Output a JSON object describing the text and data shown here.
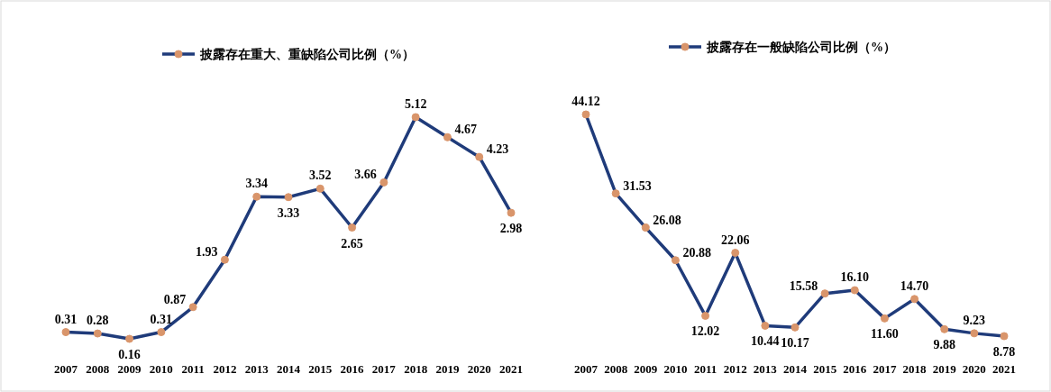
{
  "chart_data": [
    {
      "type": "line",
      "categories": [
        "2007",
        "2008",
        "2009",
        "2010",
        "2011",
        "2012",
        "2013",
        "2014",
        "2015",
        "2016",
        "2017",
        "2018",
        "2019",
        "2020",
        "2021"
      ],
      "legend": "top",
      "marker": "circle",
      "series": [
        {
          "name": "披露存在重大、重缺陷公司比例（%）",
          "color": "#1f3b7a",
          "values": [
            0.31,
            0.28,
            0.16,
            0.31,
            0.87,
            1.93,
            3.34,
            3.33,
            3.52,
            2.65,
            3.66,
            5.12,
            4.67,
            4.23,
            2.98
          ],
          "value_labels": [
            "0.31",
            "0.28",
            "0.16",
            "0.31",
            "0.87",
            "1.93",
            "3.34",
            "3.33",
            "3.52",
            "2.65",
            "3.66",
            "5.12",
            "4.67",
            "4.23",
            "2.98"
          ]
        }
      ]
    },
    {
      "type": "line",
      "categories": [
        "2007",
        "2008",
        "2009",
        "2010",
        "2011",
        "2012",
        "2013",
        "2014",
        "2015",
        "2016",
        "2017",
        "2018",
        "2019",
        "2020",
        "2021"
      ],
      "legend": "top",
      "marker": "circle",
      "series": [
        {
          "name": "披露存在一般缺陷公司比例（%）",
          "color": "#1f3b7a",
          "values": [
            44.12,
            31.53,
            26.08,
            20.88,
            12.02,
            22.06,
            10.44,
            10.17,
            15.58,
            16.1,
            11.6,
            14.7,
            9.88,
            9.23,
            8.78
          ],
          "value_labels": [
            "44.12",
            "31.53",
            "26.08",
            "20.88",
            "12.02",
            "22.06",
            "10.44",
            "10.17",
            "15.58",
            "16.10",
            "11.60",
            "14.70",
            "9.88",
            "9.23",
            "8.78"
          ]
        }
      ]
    }
  ]
}
